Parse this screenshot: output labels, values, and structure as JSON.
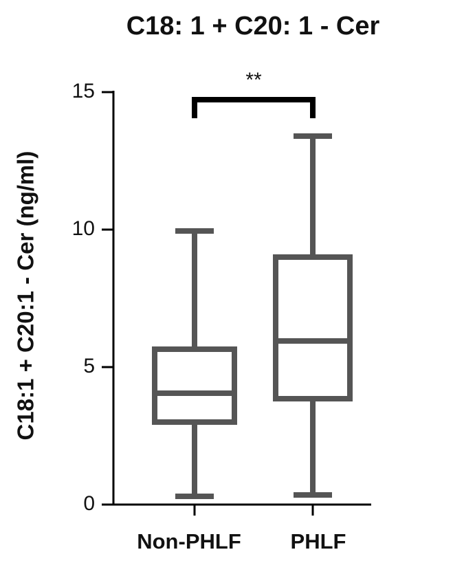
{
  "chart_data": {
    "type": "box",
    "title": "C18: 1 + C20: 1 - Cer",
    "y_label": "C18:1 + C20:1 - Cer (ng/ml)",
    "categories": [
      "Non-PHLF",
      "PHLF"
    ],
    "boxes": [
      {
        "min": 0.3,
        "q1": 3.0,
        "median": 4.05,
        "q3": 5.65,
        "max": 9.95
      },
      {
        "min": 0.35,
        "q1": 3.85,
        "median": 5.95,
        "q3": 9.0,
        "max": 13.4
      }
    ],
    "color": "#555555",
    "annotation": "**",
    "ylim": [
      0,
      15
    ],
    "yticks": [
      0,
      5,
      10,
      15
    ]
  }
}
